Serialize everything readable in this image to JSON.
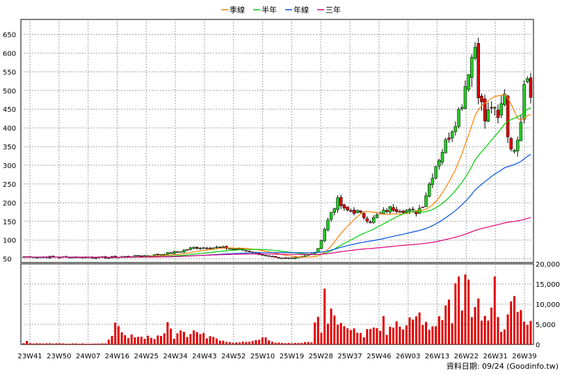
{
  "chart_data": {
    "type": "line",
    "legend": [
      {
        "name": "季線",
        "color": "#ff7f00"
      },
      {
        "name": "半年",
        "color": "#00cc00"
      },
      {
        "name": "年線",
        "color": "#0050e0"
      },
      {
        "name": "三年",
        "color": "#e0007f"
      }
    ],
    "legend_position": "top-center",
    "price_axis": {
      "ylim": [
        40,
        690
      ],
      "ticks": [
        50,
        100,
        150,
        200,
        250,
        300,
        350,
        400,
        450,
        500,
        550,
        600,
        650
      ],
      "side": "left"
    },
    "volume_axis": {
      "ylim": [
        0,
        20000
      ],
      "ticks": [
        "0",
        "5,000",
        "10,000",
        "15,000",
        "20,000"
      ],
      "side": "right"
    },
    "x_ticks": [
      "23W41",
      "23W50",
      "24W07",
      "24W16",
      "24W25",
      "24W34",
      "24W43",
      "24W52",
      "25W10",
      "25W19",
      "25W28",
      "25W37",
      "25W46",
      "26W03",
      "26W13",
      "26W22",
      "26W31",
      "26W39"
    ],
    "grid": true,
    "source_text": "資料日期: 09/24 (Goodinfo.tw)",
    "colors": {
      "up": "#22cc22",
      "down": "#e00000",
      "volume": "#e00000",
      "grid": "#a0a0a0"
    },
    "weeks": 156,
    "price_anchors": [
      [
        0,
        55
      ],
      [
        15,
        54
      ],
      [
        25,
        53
      ],
      [
        32,
        56
      ],
      [
        40,
        60
      ],
      [
        47,
        68
      ],
      [
        52,
        80
      ],
      [
        60,
        80
      ],
      [
        66,
        75
      ],
      [
        70,
        68
      ],
      [
        74,
        58
      ],
      [
        78,
        50
      ],
      [
        84,
        55
      ],
      [
        88,
        62
      ],
      [
        90,
        75
      ],
      [
        92,
        130
      ],
      [
        94,
        175
      ],
      [
        96,
        205
      ],
      [
        98,
        180
      ],
      [
        102,
        175
      ],
      [
        106,
        150
      ],
      [
        108,
        165
      ],
      [
        112,
        185
      ],
      [
        116,
        180
      ],
      [
        120,
        175
      ],
      [
        122,
        195
      ],
      [
        124,
        250
      ],
      [
        126,
        300
      ],
      [
        128,
        340
      ],
      [
        130,
        380
      ],
      [
        132,
        420
      ],
      [
        134,
        470
      ],
      [
        136,
        560
      ],
      [
        138,
        620
      ],
      [
        139,
        500
      ],
      [
        141,
        420
      ],
      [
        143,
        460
      ],
      [
        145,
        420
      ],
      [
        147,
        500
      ],
      [
        148,
        380
      ],
      [
        150,
        330
      ],
      [
        152,
        430
      ],
      [
        153,
        530
      ],
      [
        154,
        540
      ],
      [
        155,
        500
      ]
    ],
    "volume_anchors": [
      [
        0,
        300
      ],
      [
        1,
        1200
      ],
      [
        2,
        300
      ],
      [
        25,
        200
      ],
      [
        26,
        1500
      ],
      [
        28,
        4500
      ],
      [
        30,
        2500
      ],
      [
        32,
        1500
      ],
      [
        34,
        2500
      ],
      [
        36,
        1800
      ],
      [
        38,
        2000
      ],
      [
        40,
        1500
      ],
      [
        42,
        2000
      ],
      [
        44,
        5000
      ],
      [
        46,
        2000
      ],
      [
        48,
        4500
      ],
      [
        50,
        2500
      ],
      [
        52,
        3500
      ],
      [
        54,
        2500
      ],
      [
        56,
        2000
      ],
      [
        58,
        2500
      ],
      [
        60,
        1200
      ],
      [
        64,
        500
      ],
      [
        70,
        700
      ],
      [
        74,
        1800
      ],
      [
        76,
        600
      ],
      [
        80,
        300
      ],
      [
        84,
        400
      ],
      [
        88,
        600
      ],
      [
        90,
        9000
      ],
      [
        91,
        3000
      ],
      [
        92,
        12000
      ],
      [
        93,
        7000
      ],
      [
        94,
        9500
      ],
      [
        96,
        7000
      ],
      [
        98,
        4000
      ],
      [
        100,
        5000
      ],
      [
        102,
        3000
      ],
      [
        104,
        2500
      ],
      [
        106,
        4000
      ],
      [
        108,
        3500
      ],
      [
        110,
        5500
      ],
      [
        111,
        2000
      ],
      [
        112,
        3500
      ],
      [
        114,
        6500
      ],
      [
        116,
        3000
      ],
      [
        118,
        5500
      ],
      [
        120,
        7500
      ],
      [
        122,
        6000
      ],
      [
        124,
        3500
      ],
      [
        126,
        5000
      ],
      [
        128,
        8000
      ],
      [
        130,
        12000
      ],
      [
        131,
        7000
      ],
      [
        132,
        15000
      ],
      [
        133,
        20000
      ],
      [
        134,
        12000
      ],
      [
        136,
        15000
      ],
      [
        137,
        8000
      ],
      [
        138,
        11000
      ],
      [
        140,
        7000
      ],
      [
        142,
        5500
      ],
      [
        144,
        14000
      ],
      [
        146,
        4000
      ],
      [
        148,
        6500
      ],
      [
        150,
        11000
      ],
      [
        152,
        12000
      ],
      [
        153,
        7000
      ],
      [
        154,
        5500
      ],
      [
        155,
        4500
      ]
    ]
  }
}
